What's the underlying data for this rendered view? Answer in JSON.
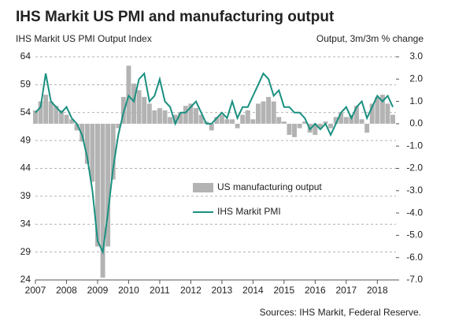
{
  "chart_data": {
    "type": "bar-line",
    "title": "IHS Markit US PMI and manufacturing output",
    "y_label": "IHS Markit US PMI Output Index",
    "y2_label": "Output, 3m/3m % change",
    "source": "Sources: IHS Markit, Federal Reserve.",
    "x": [
      2007.0,
      2007.167,
      2007.333,
      2007.5,
      2007.667,
      2007.833,
      2008.0,
      2008.167,
      2008.333,
      2008.5,
      2008.667,
      2008.833,
      2009.0,
      2009.167,
      2009.333,
      2009.5,
      2009.667,
      2009.833,
      2010.0,
      2010.167,
      2010.333,
      2010.5,
      2010.667,
      2010.833,
      2011.0,
      2011.167,
      2011.333,
      2011.5,
      2011.667,
      2011.833,
      2012.0,
      2012.167,
      2012.333,
      2012.5,
      2012.667,
      2012.833,
      2013.0,
      2013.167,
      2013.333,
      2013.5,
      2013.667,
      2013.833,
      2014.0,
      2014.167,
      2014.333,
      2014.5,
      2014.667,
      2014.833,
      2015.0,
      2015.167,
      2015.333,
      2015.5,
      2015.667,
      2015.833,
      2016.0,
      2016.167,
      2016.333,
      2016.5,
      2016.667,
      2016.833,
      2017.0,
      2017.167,
      2017.333,
      2017.5,
      2017.667,
      2017.833,
      2018.0,
      2018.167,
      2018.333,
      2018.5
    ],
    "series": [
      {
        "name": "US manufacturing output",
        "type": "bar",
        "axis": "y2",
        "color": "#b3b3b3",
        "values": [
          0.6,
          1.0,
          1.3,
          1.0,
          0.8,
          0.6,
          0.4,
          0.2,
          -0.3,
          -0.8,
          -1.8,
          -2.6,
          -5.5,
          -6.9,
          -5.5,
          -2.5,
          -0.2,
          1.2,
          2.6,
          1.8,
          1.5,
          1.2,
          0.9,
          0.6,
          0.7,
          0.6,
          0.3,
          0.4,
          0.5,
          0.8,
          0.9,
          0.7,
          0.4,
          0.1,
          -0.3,
          0.3,
          0.4,
          0.2,
          0.2,
          -0.2,
          0.4,
          0.6,
          0.2,
          0.9,
          1.0,
          1.2,
          1.0,
          0.3,
          0.1,
          -0.5,
          -0.6,
          -0.2,
          0.1,
          -0.4,
          -0.5,
          -0.2,
          0.1,
          -0.2,
          0.3,
          0.5,
          0.3,
          0.4,
          0.8,
          0.2,
          -0.4,
          0.9,
          1.2,
          1.3,
          0.9,
          0.4
        ]
      },
      {
        "name": "IHS Markit PMI",
        "type": "line",
        "color": "#1a9080",
        "values": [
          54,
          55,
          61,
          56,
          55,
          54,
          55,
          53,
          52,
          50,
          46,
          40,
          31,
          29,
          36,
          44,
          50,
          54,
          57,
          56,
          60,
          61,
          56,
          57,
          60,
          56,
          55,
          52,
          54,
          54,
          55,
          56,
          54,
          52,
          52,
          53,
          54,
          53,
          56,
          53,
          55,
          55,
          57,
          59,
          61,
          60,
          57,
          58,
          55,
          55,
          54,
          54,
          53,
          51,
          52,
          51,
          52,
          50,
          52,
          54,
          55,
          53,
          55,
          56,
          53,
          55,
          57,
          56,
          57,
          55
        ]
      }
    ],
    "xlim": [
      2007,
      2018.6
    ],
    "xticks": [
      2007,
      2008,
      2009,
      2010,
      2011,
      2012,
      2013,
      2014,
      2015,
      2016,
      2017,
      2018
    ],
    "ylim": [
      24,
      64
    ],
    "yticks": [
      24,
      29,
      34,
      39,
      44,
      49,
      54,
      59,
      64
    ],
    "y2lim": [
      -7,
      3
    ],
    "y2ticks": [
      {
        "value": 3,
        "label": "3.0"
      },
      {
        "value": 2,
        "label": "2.0"
      },
      {
        "value": 1,
        "label": "1.0"
      },
      {
        "value": 0,
        "label": "0.0"
      },
      {
        "value": -1,
        "label": "-1.0"
      },
      {
        "value": -2,
        "label": "-2.0"
      },
      {
        "value": -3,
        "label": "-3.0"
      },
      {
        "value": -4,
        "label": "-4.0"
      },
      {
        "value": -5,
        "label": "-5.0"
      },
      {
        "value": -6,
        "label": "-6.0"
      },
      {
        "value": -7,
        "label": "-7.0"
      }
    ],
    "grid": true
  }
}
